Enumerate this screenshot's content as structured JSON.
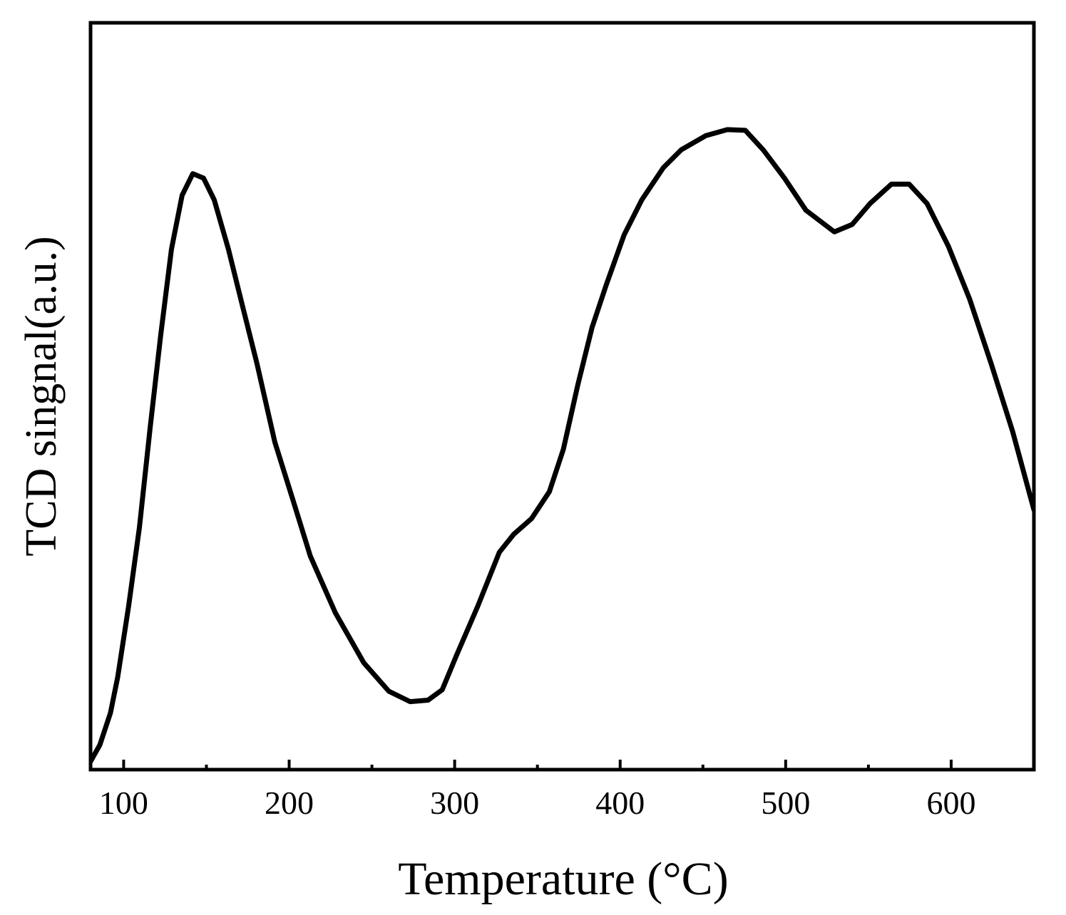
{
  "chart_data": {
    "type": "line",
    "x_label": "Temperature (°C)",
    "y_label": "TCD singnal(a.u.)",
    "xlim": [
      80,
      650
    ],
    "xticks": [
      100,
      200,
      300,
      400,
      500,
      600
    ],
    "xminorticks": [
      150,
      250,
      350,
      450,
      550
    ],
    "ylim": [
      0,
      100
    ],
    "series": [
      {
        "color": "#000000",
        "x": [
          80,
          85.6,
          92,
          96.4,
          103,
          109.5,
          116,
          122.4,
          128.9,
          135.3,
          141.8,
          148.3,
          154.7,
          163.3,
          171.9,
          180.5,
          191.3,
          202,
          212.8,
          227.9,
          245.1,
          260.2,
          273.1,
          283.9,
          292.5,
          301.1,
          314,
          327,
          335.6,
          346.4,
          357.2,
          365.7,
          374.4,
          383,
          391.6,
          402.4,
          413.1,
          426.1,
          436.9,
          451.9,
          464.8,
          475.6,
          486.4,
          499.3,
          512.2,
          529.4,
          540.2,
          551,
          563.9,
          574.6,
          585.4,
          598.3,
          611.2,
          624.1,
          637.1,
          650
        ],
        "values": [
          1.1,
          3.3,
          7.6,
          12.4,
          21.9,
          32.4,
          45.8,
          58.2,
          69.7,
          76.9,
          79.8,
          79.2,
          76.3,
          69.7,
          62,
          54.4,
          43.9,
          36.3,
          28.6,
          21,
          14.3,
          10.5,
          9.1,
          9.3,
          10.7,
          15.3,
          21.9,
          29.1,
          31.5,
          33.6,
          37.2,
          42.9,
          51.5,
          59.2,
          64.9,
          71.6,
          76.3,
          80.6,
          83,
          84.9,
          85.7,
          85.6,
          83,
          79.2,
          74.9,
          72,
          73,
          75.8,
          78.4,
          78.4,
          75.8,
          70.1,
          63,
          54.4,
          45.3,
          34.8
        ]
      }
    ]
  }
}
